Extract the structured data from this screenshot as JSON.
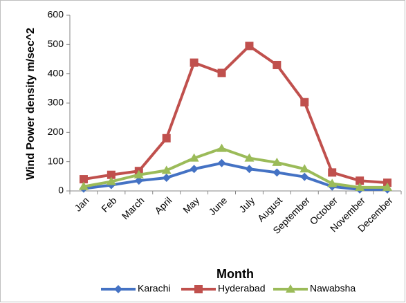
{
  "chart_data": {
    "type": "line",
    "y_label": "Wind Power density m/sec^2",
    "x_label": "Month",
    "categories": [
      "Jan",
      "Feb",
      "March",
      "April",
      "May",
      "June",
      "July",
      "August",
      "September",
      "October",
      "November",
      "December"
    ],
    "series": [
      {
        "name": "Karachi",
        "color": "#4472c4",
        "marker": "diamond",
        "values": [
          8,
          20,
          35,
          45,
          75,
          95,
          75,
          63,
          48,
          15,
          5,
          5
        ]
      },
      {
        "name": "Hyderabad",
        "color": "#c0504d",
        "marker": "square",
        "values": [
          40,
          55,
          68,
          180,
          438,
          403,
          495,
          430,
          303,
          63,
          35,
          28
        ]
      },
      {
        "name": "Nawabsha",
        "color": "#9bbb59",
        "marker": "triangle",
        "values": [
          15,
          32,
          55,
          70,
          112,
          145,
          112,
          97,
          75,
          25,
          12,
          12
        ]
      }
    ],
    "ylim": [
      0,
      600
    ],
    "yticks": [
      0,
      100,
      200,
      300,
      400,
      500,
      600
    ],
    "grid": false
  }
}
